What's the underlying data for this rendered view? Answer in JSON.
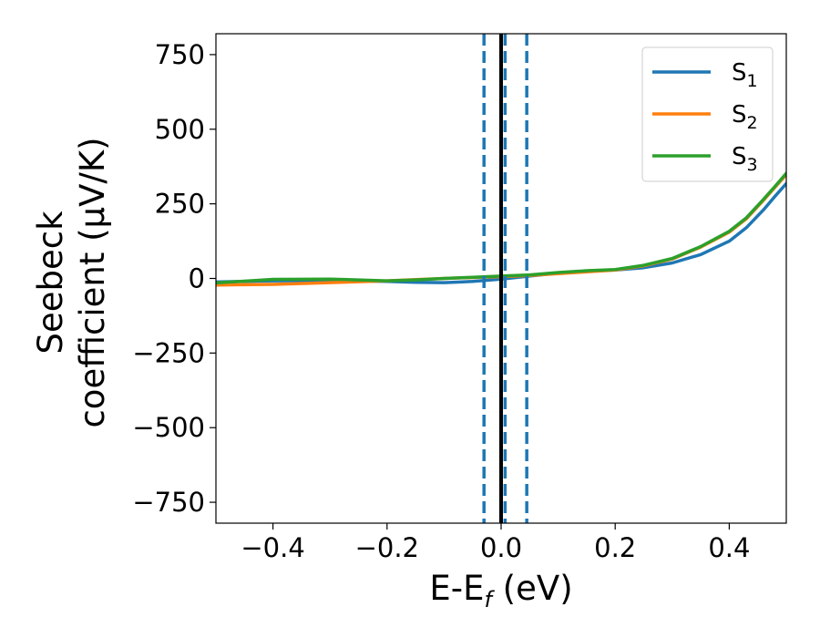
{
  "chart_data": {
    "type": "line",
    "title": "",
    "xlabel": {
      "main": "E-E",
      "sub": "f",
      "unit": " (eV)"
    },
    "ylabel": {
      "line1": "Seebeck",
      "line2": "coefficient  (μV/K)"
    },
    "xlim": [
      -0.5,
      0.5
    ],
    "ylim": [
      -820,
      820
    ],
    "xticks": [
      -0.4,
      -0.2,
      0.0,
      0.2,
      0.4
    ],
    "xtick_labels": [
      "−0.4",
      "−0.2",
      "0.0",
      "0.2",
      "0.4"
    ],
    "yticks": [
      -750,
      -500,
      -250,
      0,
      250,
      500,
      750
    ],
    "ytick_labels": [
      "−750",
      "−500",
      "−250",
      "0",
      "250",
      "500",
      "750"
    ],
    "grid": false,
    "legend_position": "top-right",
    "vlines": [
      {
        "x": 0.0,
        "style": "solid",
        "color": "#000000"
      },
      {
        "x": -0.03,
        "style": "dashed",
        "color": "#1f77b4"
      },
      {
        "x": 0.007,
        "style": "dashed",
        "color": "#1f77b4"
      },
      {
        "x": 0.045,
        "style": "dashed",
        "color": "#1f77b4"
      }
    ],
    "series": [
      {
        "name": "S",
        "sub": "1",
        "color": "#1f77b4",
        "x": [
          -0.5,
          -0.4,
          -0.3,
          -0.2,
          -0.15,
          -0.1,
          -0.05,
          0.0,
          0.05,
          0.1,
          0.15,
          0.2,
          0.25,
          0.3,
          0.35,
          0.4,
          0.43,
          0.46,
          0.48,
          0.5
        ],
        "y": [
          -12,
          -8,
          -7,
          -10,
          -13,
          -14,
          -10,
          -2,
          8,
          18,
          24,
          28,
          36,
          52,
          80,
          125,
          170,
          230,
          275,
          318
        ]
      },
      {
        "name": "S",
        "sub": "2",
        "color": "#ff7f0e",
        "x": [
          -0.5,
          -0.4,
          -0.3,
          -0.2,
          -0.15,
          -0.1,
          -0.05,
          0.0,
          0.05,
          0.1,
          0.15,
          0.2,
          0.25,
          0.3,
          0.35,
          0.4,
          0.43,
          0.46,
          0.48,
          0.5
        ],
        "y": [
          -22,
          -20,
          -14,
          -8,
          -4,
          0,
          3,
          6,
          10,
          16,
          22,
          28,
          42,
          65,
          105,
          155,
          200,
          262,
          305,
          348
        ]
      },
      {
        "name": "S",
        "sub": "3",
        "color": "#2ca02c",
        "x": [
          -0.5,
          -0.4,
          -0.3,
          -0.2,
          -0.15,
          -0.1,
          -0.05,
          0.0,
          0.05,
          0.1,
          0.15,
          0.2,
          0.25,
          0.3,
          0.35,
          0.4,
          0.43,
          0.46,
          0.48,
          0.5
        ],
        "y": [
          -15,
          -3,
          -2,
          -8,
          -5,
          0,
          4,
          8,
          12,
          20,
          26,
          30,
          44,
          67,
          107,
          158,
          203,
          265,
          308,
          352
        ]
      }
    ]
  }
}
